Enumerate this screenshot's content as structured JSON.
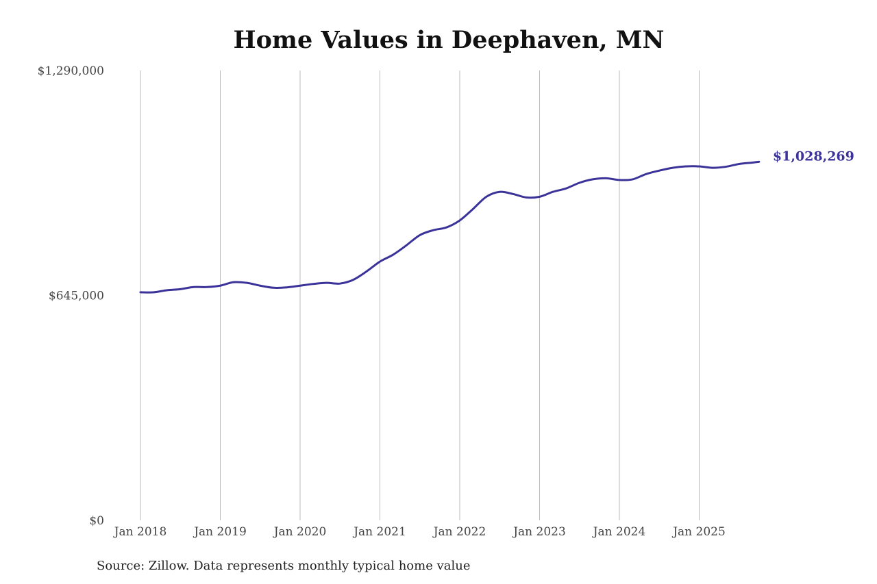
{
  "chart_data": {
    "type": "line",
    "title": "Home Values in Deephaven, MN",
    "source": "Source: Zillow. Data represents monthly typical home value",
    "xlabel": "",
    "ylabel": "",
    "ylim": [
      0,
      1290000
    ],
    "y_ticks": [
      0,
      645000,
      1290000
    ],
    "y_tick_labels": [
      "$0",
      "$645,000",
      "$1,290,000"
    ],
    "x_ticks": [
      "2018-01",
      "2019-01",
      "2020-01",
      "2021-01",
      "2022-01",
      "2023-01",
      "2024-01",
      "2025-01"
    ],
    "x_tick_labels": [
      "Jan 2018",
      "Jan 2019",
      "Jan 2020",
      "Jan 2021",
      "Jan 2022",
      "Jan 2023",
      "Jan 2024",
      "Jan 2025"
    ],
    "grid": "vertical",
    "line_color": "#3b3399",
    "end_label": "$1,028,269",
    "series": [
      {
        "x": [
          "2018-01",
          "2018-03",
          "2018-05",
          "2018-07",
          "2018-09",
          "2018-11",
          "2019-01",
          "2019-03",
          "2019-05",
          "2019-07",
          "2019-09",
          "2019-11",
          "2020-01",
          "2020-03",
          "2020-05",
          "2020-07",
          "2020-09",
          "2020-11",
          "2021-01",
          "2021-03",
          "2021-05",
          "2021-07",
          "2021-09",
          "2021-11",
          "2022-01",
          "2022-03",
          "2022-05",
          "2022-07",
          "2022-09",
          "2022-11",
          "2023-01",
          "2023-03",
          "2023-05",
          "2023-07",
          "2023-09",
          "2023-11",
          "2024-01",
          "2024-03",
          "2024-05",
          "2024-07",
          "2024-09",
          "2024-11",
          "2025-01",
          "2025-03",
          "2025-05",
          "2025-07",
          "2025-09",
          "2025-10"
        ],
        "y": [
          654000,
          654000,
          660000,
          663000,
          669000,
          669000,
          673000,
          683000,
          681000,
          673000,
          667000,
          668000,
          673000,
          678000,
          681000,
          679000,
          690000,
          714000,
          742000,
          762000,
          789000,
          818000,
          832000,
          840000,
          860000,
          893000,
          928000,
          942000,
          936000,
          926000,
          928000,
          942000,
          952000,
          968000,
          978000,
          981000,
          976000,
          978000,
          993000,
          1003000,
          1011000,
          1015000,
          1015000,
          1011000,
          1014000,
          1022000,
          1026000,
          1028269
        ]
      }
    ]
  }
}
